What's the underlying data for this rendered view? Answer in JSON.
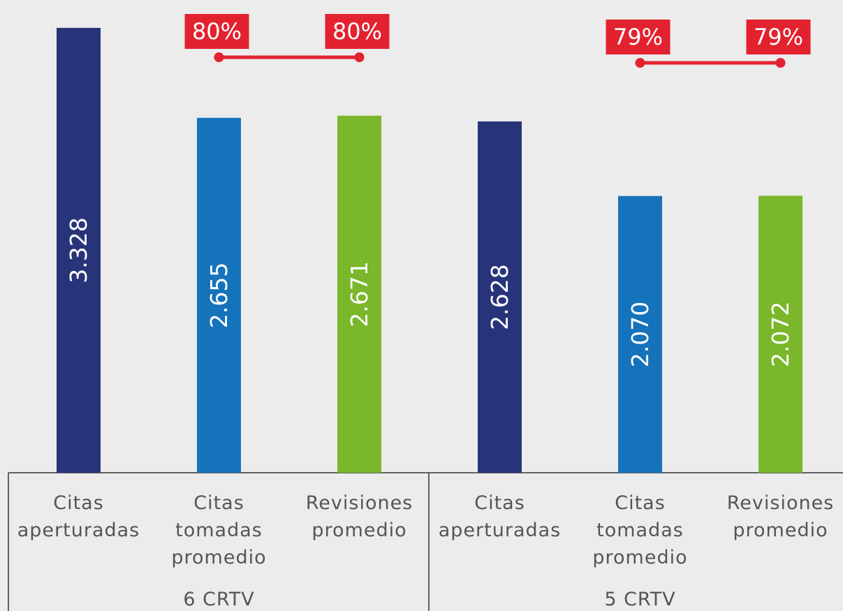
{
  "chart_data": {
    "type": "bar",
    "categories": [
      "Citas\naperturadas",
      "Citas\ntomadas\npromedio",
      "Revisiones\npromedio",
      "Citas\naperturadas",
      "Citas\ntomadas\npromedio",
      "Revisiones\npromedio"
    ],
    "groups": [
      "6 CRTV",
      "5 CRTV"
    ],
    "colors": [
      "#283479",
      "#1573bb",
      "#7ab72b",
      "#283479",
      "#1573bb",
      "#7ab72b"
    ],
    "values": [
      3328,
      2655,
      2671,
      2628,
      2070,
      2072
    ],
    "value_labels": [
      "3.328",
      "2.655",
      "2.671",
      "2.628",
      "2.070",
      "2.072"
    ],
    "ylim": [
      0,
      3500
    ],
    "line": {
      "axis": "y2",
      "color": "#e3222f",
      "values": [
        null,
        80,
        80,
        null,
        79,
        79
      ],
      "value_labels": [
        null,
        "80%",
        "80%",
        null,
        "79%",
        "79%"
      ]
    },
    "y2lim": [
      75,
      85
    ]
  }
}
